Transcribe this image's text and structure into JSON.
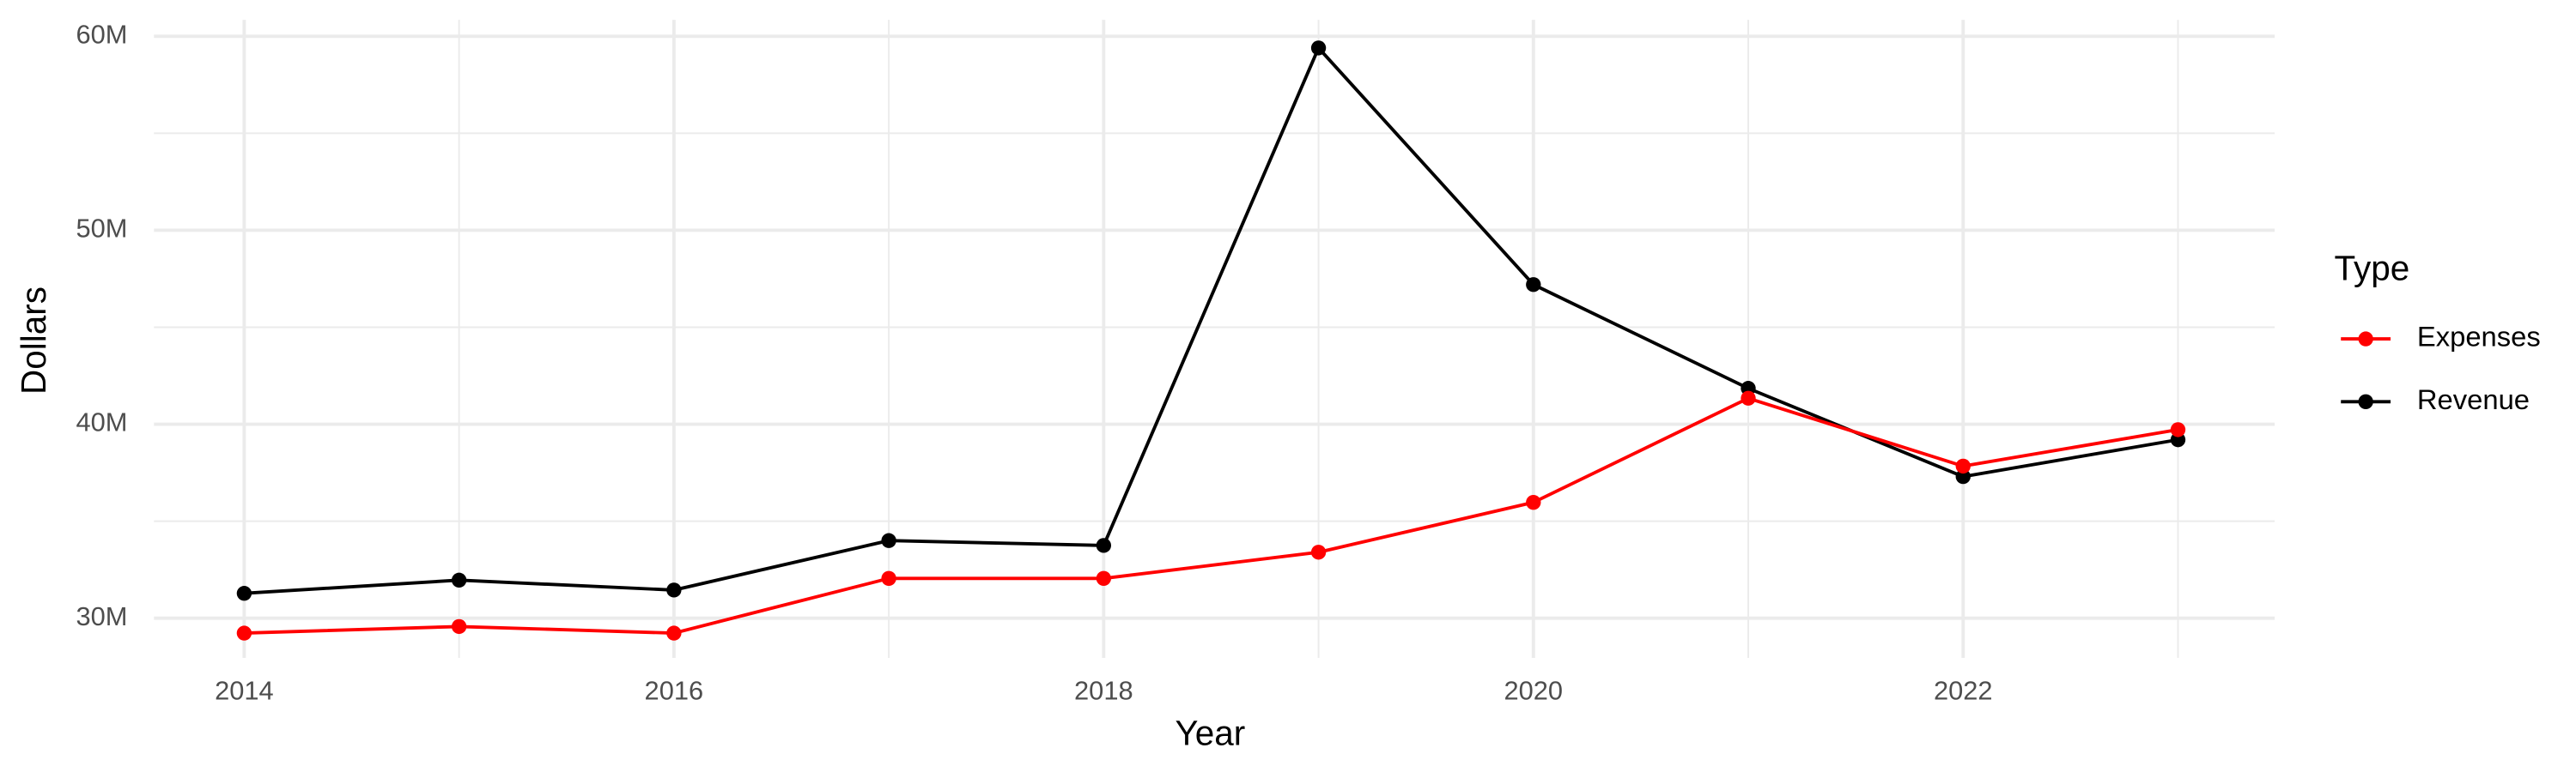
{
  "chart_data": {
    "type": "line",
    "x_label": "Year",
    "y_label": "Dollars",
    "legend_title": "Type",
    "legend": "right",
    "x": [
      2014,
      2015,
      2016,
      2017,
      2018,
      2019,
      2020,
      2021,
      2022,
      2023
    ],
    "series": [
      {
        "name": "Expenses",
        "color": "#ff0000",
        "values": [
          29230000,
          29570000,
          29230000,
          32050000,
          32050000,
          33400000,
          35970000,
          41340000,
          37840000,
          39720000
        ]
      },
      {
        "name": "Revenue",
        "color": "#000000",
        "values": [
          31280000,
          31960000,
          31450000,
          34000000,
          33750000,
          59400000,
          47200000,
          41850000,
          37300000,
          39200000
        ]
      }
    ],
    "xlim": [
      2013.58,
      2023.45
    ],
    "ylim": [
      27950000,
      60850000
    ],
    "xticks": [
      2014,
      2016,
      2018,
      2020,
      2022
    ],
    "yticks": [
      {
        "value": 30000000,
        "label": "30M"
      },
      {
        "value": 40000000,
        "label": "40M"
      },
      {
        "value": 50000000,
        "label": "50M"
      },
      {
        "value": 60000000,
        "label": "60M"
      }
    ],
    "grid": true
  }
}
